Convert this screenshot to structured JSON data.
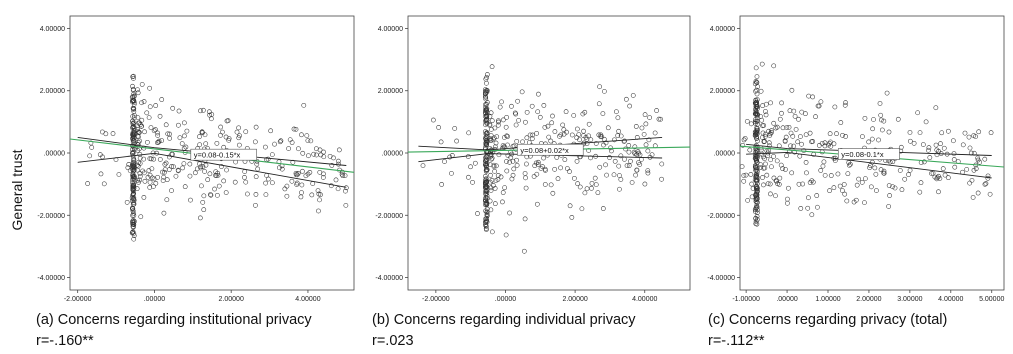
{
  "shared": {
    "ylabel": "General trust"
  },
  "chart_data": [
    {
      "type": "scatter",
      "caption": "(a) Concerns regarding institutional privacy",
      "stat": "r=-.160**",
      "xlim": [
        -2.2,
        5.2
      ],
      "ylim": [
        -4.4,
        4.4
      ],
      "xticks": [
        -2.0,
        0.0,
        2.0,
        4.0
      ],
      "xtick_labels": [
        "-2.00000",
        ".00000",
        "2.00000",
        "4.00000"
      ],
      "yticks": [
        4.0,
        2.0,
        0.0,
        -2.0,
        -4.0
      ],
      "ytick_labels": [
        "4.00000",
        "2.00000",
        ".00000",
        "-2.00000",
        "-4.00000"
      ],
      "fit_label": "y=0.08-0.15*x",
      "fit": {
        "intercept": 0.08,
        "slope": -0.15
      },
      "fit_label_at": 1.0,
      "ci_upper": [
        [
          -2.0,
          0.5
        ],
        [
          0.0,
          0.17
        ],
        [
          5.0,
          -0.4
        ]
      ],
      "ci_lower": [
        [
          -2.0,
          -0.3
        ],
        [
          0.0,
          -0.01
        ],
        [
          5.0,
          -1.1
        ]
      ],
      "green_line": [
        [
          -2.2,
          0.45
        ],
        [
          5.2,
          -0.62
        ]
      ],
      "spike_x": -0.55,
      "spike_range": [
        -2.9,
        2.8
      ],
      "cloud": {
        "xmin": -1.8,
        "xmax": 5.0,
        "sd": 0.95,
        "n": 440,
        "seed": 11
      }
    },
    {
      "type": "scatter",
      "caption": "(b) Concerns regarding individual privacy",
      "stat": "r=.023",
      "xlim": [
        -2.8,
        5.3
      ],
      "ylim": [
        -4.4,
        4.4
      ],
      "xticks": [
        -2.0,
        0.0,
        2.0,
        4.0
      ],
      "xtick_labels": [
        "-2.00000",
        ".00000",
        "2.00000",
        "4.00000"
      ],
      "yticks": [
        4.0,
        2.0,
        0.0,
        -2.0,
        -4.0
      ],
      "ytick_labels": [
        "4.00000",
        "2.00000",
        ".00000",
        "-2.00000",
        "-4.00000"
      ],
      "fit_label": "y=0.08+0.02*x",
      "fit": {
        "intercept": 0.08,
        "slope": 0.02
      },
      "fit_label_at": 0.4,
      "ci_upper": [
        [
          -2.5,
          0.22
        ],
        [
          -0.5,
          0.1
        ],
        [
          4.5,
          0.5
        ]
      ],
      "ci_lower": [
        [
          -2.5,
          -0.28
        ],
        [
          -0.5,
          -0.02
        ],
        [
          4.5,
          -0.16
        ]
      ],
      "green_line": [
        [
          -2.8,
          0.03
        ],
        [
          5.3,
          0.19
        ]
      ],
      "spike_x": -0.55,
      "spike_range": [
        -2.9,
        2.8
      ],
      "cloud": {
        "xmin": -2.4,
        "xmax": 4.5,
        "sd": 0.95,
        "n": 440,
        "seed": 23
      }
    },
    {
      "type": "scatter",
      "caption": "(c) Concerns regarding privacy (total)",
      "stat": "r=-.112**",
      "xlim": [
        -1.15,
        5.3
      ],
      "ylim": [
        -4.4,
        4.4
      ],
      "xticks": [
        -1.0,
        0.0,
        1.0,
        2.0,
        3.0,
        4.0,
        5.0
      ],
      "xtick_labels": [
        "-1.00000",
        ".00000",
        "1.00000",
        "2.00000",
        "3.00000",
        "4.00000",
        "5.00000"
      ],
      "yticks": [
        4.0,
        2.0,
        0.0,
        -2.0,
        -4.0
      ],
      "ytick_labels": [
        "4.00000",
        "2.00000",
        ".00000",
        "-2.00000",
        "-4.00000"
      ],
      "fit_label": "y=0.08-0.1*x",
      "fit": {
        "intercept": 0.08,
        "slope": -0.1
      },
      "fit_label_at": 1.3,
      "ci_upper": [
        [
          -1.0,
          0.28
        ],
        [
          0.0,
          0.14
        ],
        [
          5.0,
          -0.08
        ]
      ],
      "ci_lower": [
        [
          -1.0,
          -0.04
        ],
        [
          0.0,
          0.02
        ],
        [
          5.0,
          -0.8
        ]
      ],
      "green_line": [
        [
          -1.15,
          0.22
        ],
        [
          5.3,
          -0.45
        ]
      ],
      "spike_x": -0.75,
      "spike_range": [
        -2.9,
        2.8
      ],
      "cloud": {
        "xmin": -1.1,
        "xmax": 5.0,
        "sd": 0.9,
        "n": 440,
        "seed": 37
      }
    }
  ]
}
